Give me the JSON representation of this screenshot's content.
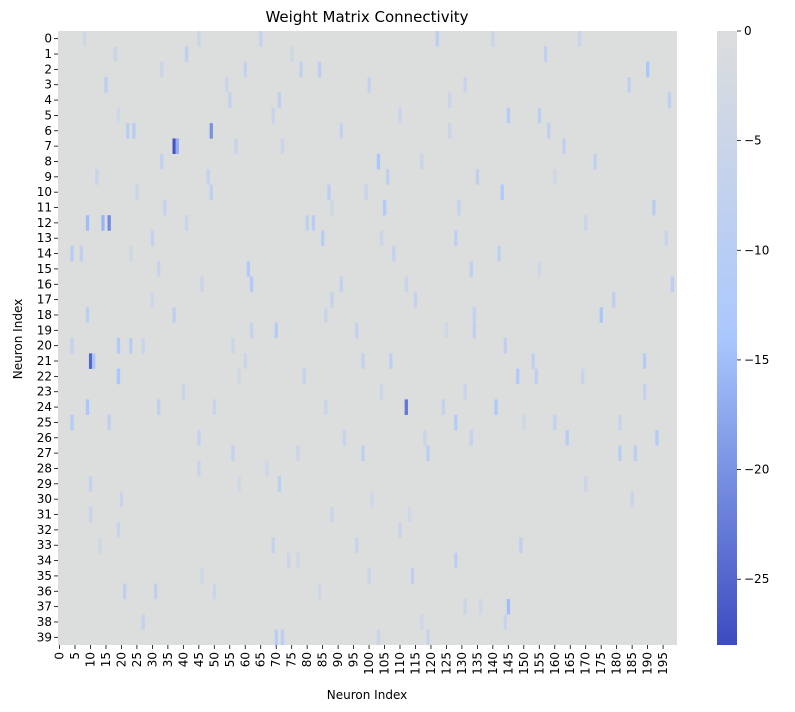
{
  "chart_data": {
    "type": "heatmap",
    "title": "Weight Matrix Connectivity",
    "xlabel": "Neuron Index",
    "ylabel": "Neuron Index",
    "n_rows": 40,
    "n_cols": 200,
    "x_tick_values": [
      0,
      5,
      10,
      15,
      20,
      25,
      30,
      35,
      40,
      45,
      50,
      55,
      60,
      65,
      70,
      75,
      80,
      85,
      90,
      95,
      100,
      105,
      110,
      115,
      120,
      125,
      130,
      135,
      140,
      145,
      150,
      155,
      160,
      165,
      170,
      175,
      180,
      185,
      190,
      195
    ],
    "y_tick_values": [
      0,
      1,
      2,
      3,
      4,
      5,
      6,
      7,
      8,
      9,
      10,
      11,
      12,
      13,
      14,
      15,
      16,
      17,
      18,
      19,
      20,
      21,
      22,
      23,
      24,
      25,
      26,
      27,
      28,
      29,
      30,
      31,
      32,
      33,
      34,
      35,
      36,
      37,
      38,
      39
    ],
    "colorbar": {
      "vmin": -28,
      "vmax": 0,
      "ticks": [
        0,
        -5,
        -10,
        -15,
        -20,
        -25
      ],
      "colors": [
        "#3b4cc0",
        "#aac7fd",
        "#dcdddd"
      ]
    },
    "cells_note_values": "Cell values listed as [row, col, value]; all unlisted cells are 0.",
    "cells": [
      [
        7,
        37,
        -27
      ],
      [
        21,
        10,
        -25
      ],
      [
        24,
        112,
        -23
      ],
      [
        12,
        16,
        -21
      ],
      [
        6,
        49,
        -20
      ],
      [
        7,
        38,
        -17
      ],
      [
        12,
        9,
        -15
      ],
      [
        12,
        14,
        -16
      ],
      [
        21,
        11,
        -14
      ],
      [
        22,
        19,
        -14
      ],
      [
        24,
        9,
        -14
      ],
      [
        37,
        145,
        -15
      ],
      [
        18,
        175,
        -14
      ],
      [
        2,
        190,
        -14
      ],
      [
        8,
        103,
        -14
      ],
      [
        11,
        105,
        -12
      ],
      [
        10,
        143,
        -12
      ],
      [
        24,
        141,
        -13
      ],
      [
        22,
        148,
        -12
      ],
      [
        25,
        4,
        -11
      ],
      [
        14,
        4,
        -11
      ],
      [
        16,
        62,
        -12
      ],
      [
        15,
        61,
        -12
      ],
      [
        20,
        19,
        -12
      ],
      [
        20,
        23,
        -10
      ],
      [
        26,
        193,
        -11
      ],
      [
        21,
        189,
        -11
      ],
      [
        5,
        145,
        -11
      ],
      [
        6,
        24,
        -10
      ],
      [
        6,
        22,
        -10
      ],
      [
        13,
        85,
        -10
      ],
      [
        3,
        15,
        -9
      ],
      [
        2,
        84,
        -9
      ],
      [
        10,
        87,
        -9
      ],
      [
        12,
        82,
        -10
      ],
      [
        25,
        128,
        -11
      ],
      [
        39,
        70,
        -10
      ],
      [
        39,
        72,
        -9
      ],
      [
        11,
        192,
        -10
      ],
      [
        19,
        70,
        -11
      ],
      [
        17,
        179,
        -8
      ],
      [
        26,
        164,
        -10
      ],
      [
        27,
        181,
        -10
      ],
      [
        27,
        186,
        -9
      ],
      [
        4,
        71,
        -8
      ],
      [
        27,
        119,
        -9
      ],
      [
        9,
        106,
        -8
      ],
      [
        33,
        149,
        -8
      ],
      [
        34,
        128,
        -9
      ],
      [
        35,
        114,
        -8
      ],
      [
        36,
        21,
        -8
      ],
      [
        36,
        31,
        -8
      ],
      [
        29,
        71,
        -9
      ],
      [
        0,
        122,
        -9
      ],
      [
        1,
        41,
        -8
      ],
      [
        3,
        184,
        -8
      ],
      [
        5,
        155,
        -9
      ],
      [
        7,
        163,
        -8
      ],
      [
        8,
        173,
        -8
      ],
      [
        9,
        135,
        -8
      ],
      [
        13,
        128,
        -9
      ],
      [
        14,
        142,
        -8
      ],
      [
        16,
        198,
        -9
      ],
      [
        18,
        9,
        -9
      ],
      [
        19,
        134,
        -8
      ],
      [
        20,
        144,
        -8
      ],
      [
        21,
        107,
        -9
      ],
      [
        22,
        154,
        -8
      ],
      [
        23,
        189,
        -7
      ],
      [
        24,
        32,
        -8
      ],
      [
        25,
        160,
        -7
      ],
      [
        26,
        45,
        -7
      ],
      [
        28,
        45,
        -6
      ],
      [
        29,
        10,
        -7
      ],
      [
        30,
        20,
        -6
      ],
      [
        31,
        10,
        -6
      ],
      [
        32,
        19,
        -6
      ],
      [
        33,
        69,
        -7
      ],
      [
        38,
        27,
        -7
      ],
      [
        0,
        65,
        -7
      ],
      [
        2,
        78,
        -8
      ],
      [
        3,
        100,
        -7
      ],
      [
        4,
        197,
        -9
      ],
      [
        5,
        110,
        -6
      ],
      [
        6,
        158,
        -8
      ],
      [
        9,
        48,
        -7
      ],
      [
        10,
        49,
        -8
      ],
      [
        11,
        34,
        -7
      ],
      [
        12,
        80,
        -8
      ],
      [
        13,
        30,
        -7
      ],
      [
        14,
        7,
        -8
      ],
      [
        15,
        133,
        -8
      ],
      [
        16,
        91,
        -7
      ],
      [
        17,
        115,
        -7
      ],
      [
        18,
        37,
        -8
      ],
      [
        19,
        62,
        -7
      ],
      [
        20,
        4,
        -7
      ],
      [
        21,
        153,
        -8
      ],
      [
        22,
        79,
        -7
      ],
      [
        23,
        131,
        -6
      ],
      [
        24,
        124,
        -7
      ],
      [
        25,
        16,
        -8
      ],
      [
        26,
        133,
        -7
      ],
      [
        27,
        56,
        -7
      ],
      [
        0,
        168,
        -6
      ],
      [
        1,
        157,
        -8
      ],
      [
        2,
        60,
        -7
      ],
      [
        3,
        131,
        -6
      ],
      [
        4,
        55,
        -7
      ],
      [
        5,
        69,
        -6
      ],
      [
        6,
        91,
        -7
      ],
      [
        7,
        57,
        -6
      ],
      [
        8,
        33,
        -7
      ],
      [
        9,
        12,
        -6
      ],
      [
        10,
        99,
        -6
      ],
      [
        11,
        129,
        -7
      ],
      [
        12,
        41,
        -6
      ],
      [
        13,
        196,
        -6
      ],
      [
        14,
        108,
        -7
      ],
      [
        15,
        32,
        -6
      ],
      [
        16,
        112,
        -6
      ],
      [
        17,
        88,
        -7
      ],
      [
        18,
        134,
        -7
      ],
      [
        19,
        96,
        -7
      ],
      [
        20,
        27,
        -6
      ],
      [
        21,
        98,
        -7
      ],
      [
        22,
        169,
        -6
      ],
      [
        23,
        40,
        -6
      ],
      [
        24,
        50,
        -6
      ],
      [
        25,
        181,
        -6
      ],
      [
        26,
        92,
        -6
      ],
      [
        27,
        98,
        -8
      ],
      [
        29,
        170,
        -5
      ],
      [
        30,
        185,
        -6
      ],
      [
        31,
        88,
        -5
      ],
      [
        32,
        110,
        -6
      ],
      [
        33,
        96,
        -6
      ],
      [
        34,
        74,
        -5
      ],
      [
        35,
        100,
        -5
      ],
      [
        36,
        50,
        -5
      ],
      [
        37,
        131,
        -5
      ],
      [
        38,
        144,
        -6
      ],
      [
        39,
        119,
        -6
      ],
      [
        39,
        103,
        -5
      ],
      [
        0,
        8,
        -4
      ],
      [
        0,
        45,
        -5
      ],
      [
        0,
        140,
        -5
      ],
      [
        1,
        18,
        -5
      ],
      [
        1,
        75,
        -4
      ],
      [
        2,
        33,
        -5
      ],
      [
        3,
        54,
        -5
      ],
      [
        4,
        126,
        -5
      ],
      [
        5,
        19,
        -4
      ],
      [
        6,
        126,
        -5
      ],
      [
        7,
        72,
        -5
      ],
      [
        8,
        117,
        -5
      ],
      [
        9,
        160,
        -4
      ],
      [
        10,
        25,
        -5
      ],
      [
        11,
        88,
        -4
      ],
      [
        12,
        170,
        -5
      ],
      [
        13,
        104,
        -5
      ],
      [
        14,
        23,
        -4
      ],
      [
        15,
        155,
        -4
      ],
      [
        16,
        46,
        -5
      ],
      [
        17,
        30,
        -4
      ],
      [
        18,
        86,
        -5
      ],
      [
        19,
        125,
        -4
      ],
      [
        20,
        56,
        -5
      ],
      [
        21,
        60,
        -5
      ],
      [
        22,
        58,
        -4
      ],
      [
        23,
        104,
        -5
      ],
      [
        24,
        86,
        -5
      ],
      [
        25,
        150,
        -4
      ],
      [
        26,
        118,
        -5
      ],
      [
        27,
        77,
        -5
      ],
      [
        28,
        67,
        -4
      ],
      [
        29,
        58,
        -4
      ],
      [
        30,
        101,
        -4
      ],
      [
        31,
        113,
        -4
      ],
      [
        33,
        13,
        -4
      ],
      [
        34,
        77,
        -4
      ],
      [
        35,
        46,
        -4
      ],
      [
        36,
        84,
        -4
      ],
      [
        37,
        136,
        -4
      ],
      [
        38,
        117,
        -4
      ]
    ]
  }
}
